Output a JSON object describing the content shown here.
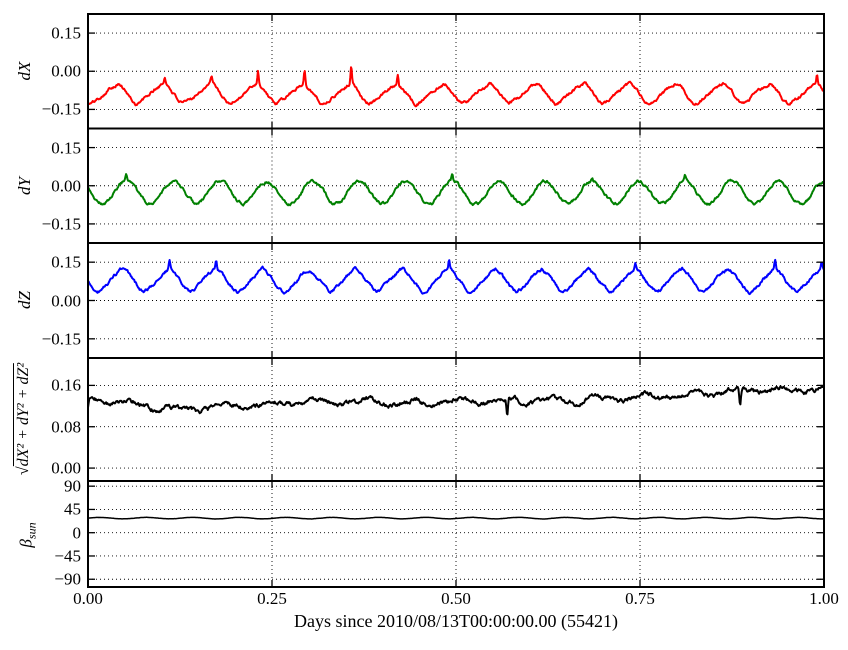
{
  "chart_data": {
    "type": "line",
    "title": "",
    "xlabel": "Days since 2010/08/13T00:00:00.00 (55421)",
    "xlim": [
      0,
      1
    ],
    "xticks": [
      {
        "v": 0.0,
        "label": "0.00"
      },
      {
        "v": 0.25,
        "label": "0.25"
      },
      {
        "v": 0.5,
        "label": "0.50"
      },
      {
        "v": 0.75,
        "label": "0.75"
      },
      {
        "v": 1.0,
        "label": "1.00"
      }
    ],
    "grid": "dotted black, both axes",
    "legend": "none",
    "background": "#ffffff",
    "panels": [
      {
        "label": "dX",
        "color": "#ff0000",
        "ylim": [
          -0.225,
          0.225
        ],
        "yticks": [
          {
            "v": 0.15,
            "label": "0.15"
          },
          {
            "v": 0.0,
            "label": "0.00"
          },
          {
            "v": -0.15,
            "label": "−0.15"
          }
        ],
        "series": {
          "description": "sawtooth-like oscillation, ~15.8 cycles/day, between -0.14 and -0.04, mean -0.09, sharp upward spikes to -0.02 on some peaks, noisy",
          "type": "osc",
          "shape": "tri",
          "base": -0.088,
          "amp": 0.05,
          "cycles": 15.8,
          "phase": 0.97,
          "rise": 0.62,
          "noiseStep": 0.0042,
          "noiseDecay": 0.8,
          "spikeProb": 0.5,
          "spikeAmp": 0.045,
          "seed": 101,
          "linewidth": 2,
          "samples": 1100
        }
      },
      {
        "label": "dY",
        "color": "#008000",
        "ylim": [
          -0.225,
          0.225
        ],
        "yticks": [
          {
            "v": 0.15,
            "label": "0.15"
          },
          {
            "v": 0.0,
            "label": "0.00"
          },
          {
            "v": -0.15,
            "label": "−0.15"
          }
        ],
        "series": {
          "description": "sinusoidal oscillation, ~15.8 cycles/day, between -0.08 and +0.02, mean -0.03, noisy flat tops near 0.00",
          "type": "osc",
          "shape": "sin",
          "base": -0.026,
          "amp": 0.044,
          "cycles": 15.8,
          "phase": 0.43,
          "noiseStep": 0.0042,
          "noiseDecay": 0.8,
          "spikeProb": 0.25,
          "spikeAmp": 0.018,
          "seed": 202,
          "linewidth": 2,
          "samples": 1100
        }
      },
      {
        "label": "dZ",
        "color": "#0000ff",
        "ylim": [
          -0.225,
          0.225
        ],
        "yticks": [
          {
            "v": 0.15,
            "label": "0.15"
          },
          {
            "v": 0.0,
            "label": "0.00"
          },
          {
            "v": -0.15,
            "label": "−0.15"
          }
        ],
        "series": {
          "description": "sawtooth-like oscillation, ~15.8 cycles/day, between +0.02 and +0.14, mean +0.08, upward spikes to 0.15 on some peaks, noisy",
          "type": "osc",
          "shape": "tri",
          "base": 0.078,
          "amp": 0.056,
          "cycles": 15.8,
          "phase": 0.8,
          "rise": 0.55,
          "noiseStep": 0.0042,
          "noiseDecay": 0.8,
          "spikeProb": 0.45,
          "spikeAmp": 0.038,
          "seed": 303,
          "linewidth": 2,
          "samples": 1100
        }
      },
      {
        "label_root": "√",
        "label_radicand": "dX² + dY² + dZ²",
        "color": "#000000",
        "ylim": [
          -0.025,
          0.213
        ],
        "yticks": [
          {
            "v": 0.16,
            "label": "0.16"
          },
          {
            "v": 0.08,
            "label": "0.08"
          },
          {
            "v": 0.0,
            "label": "0.00"
          }
        ],
        "series": {
          "description": "noisy magnitude ~0.11-0.16: starts 0.135, dips to 0.11 near t=0.13, recovers to ~0.128, slowly rises to ~0.155 at t=1.0, occasional sharp downward spikes",
          "type": "trend",
          "keyX": [
            0,
            0.03,
            0.08,
            0.13,
            0.18,
            0.25,
            0.33,
            0.42,
            0.5,
            0.58,
            0.67,
            0.75,
            0.83,
            0.9,
            0.95,
            1.0
          ],
          "keyY": [
            0.135,
            0.128,
            0.121,
            0.112,
            0.118,
            0.124,
            0.129,
            0.126,
            0.128,
            0.132,
            0.13,
            0.138,
            0.143,
            0.149,
            0.151,
            0.156
          ],
          "oscAmp": 0.005,
          "cycles": 15.8,
          "phase": 0.3,
          "noiseStep": 0.003,
          "noiseDecay": 0.8,
          "spikeProb": 0.15,
          "downSpikeAmp": 0.028,
          "seed": 404,
          "linewidth": 2,
          "samples": 1100
        }
      },
      {
        "label_main": "β",
        "label_sub": "sun",
        "color": "#000000",
        "ylim": [
          -105,
          100
        ],
        "yticks": [
          {
            "v": 90,
            "label": "90"
          },
          {
            "v": 45,
            "label": "45"
          },
          {
            "v": 0,
            "label": "0"
          },
          {
            "v": -45,
            "label": "−45"
          },
          {
            "v": -90,
            "label": "−90"
          }
        ],
        "series": {
          "description": "nearly constant sun beta angle ~28 degrees with small ripple (~1.5 deg) at ~15.8 cycles/day",
          "type": "flat",
          "base": 28.2,
          "ripple": 1.4,
          "cycles": 15.8,
          "phase": 0,
          "noiseStep": 0.12,
          "noiseDecay": 0.8,
          "spikeProb": 0,
          "seed": 505,
          "linewidth": 1.5,
          "samples": 1100
        }
      }
    ]
  }
}
